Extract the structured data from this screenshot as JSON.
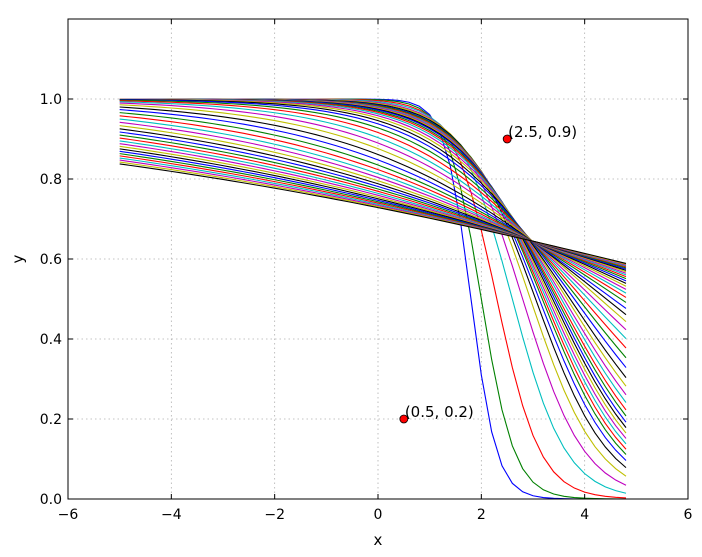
{
  "chart_data": {
    "type": "line",
    "title": "",
    "xlabel": "x",
    "ylabel": "y",
    "xlim": [
      -6,
      6
    ],
    "ylim": [
      0,
      1.2
    ],
    "grid": true,
    "legend": "none",
    "x_ticks": [
      {
        "value": -6,
        "label": "−6"
      },
      {
        "value": -4,
        "label": "−4"
      },
      {
        "value": -2,
        "label": "−2"
      },
      {
        "value": 0,
        "label": "0"
      },
      {
        "value": 2,
        "label": "2"
      },
      {
        "value": 4,
        "label": "4"
      },
      {
        "value": 6,
        "label": "6"
      }
    ],
    "y_ticks": [
      {
        "value": 0.0,
        "label": "0.0"
      },
      {
        "value": 0.2,
        "label": "0.2"
      },
      {
        "value": 0.4,
        "label": "0.4"
      },
      {
        "value": 0.6,
        "label": "0.6"
      },
      {
        "value": 0.8,
        "label": "0.8"
      },
      {
        "value": 1.0,
        "label": "1.0"
      }
    ],
    "series_formula": "y = 1 - 1/(1 + exp(-(x - c)/s)), sampled on x from -5 to 4.8 in steps of 0.2",
    "x_samples": {
      "start": -5,
      "stop": 4.8,
      "step": 0.2
    },
    "series_color_cycle": [
      "#0000ff",
      "#008000",
      "#ff0000",
      "#00bfbf",
      "#bf00bf",
      "#bfbf00",
      "#000000"
    ],
    "series": [
      {
        "c": 1.8,
        "s": 0.25
      },
      {
        "c": 2.0,
        "s": 0.32
      },
      {
        "c": 2.3,
        "s": 0.42
      },
      {
        "c": 2.6,
        "s": 0.52
      },
      {
        "c": 2.8,
        "s": 0.6
      },
      {
        "c": 2.95,
        "s": 0.66
      },
      {
        "c": 3.05,
        "s": 0.71
      },
      {
        "c": 3.12,
        "s": 0.75
      },
      {
        "c": 3.18,
        "s": 0.78
      },
      {
        "c": 3.22,
        "s": 0.81
      },
      {
        "c": 3.26,
        "s": 0.84
      },
      {
        "c": 3.3,
        "s": 0.87
      },
      {
        "c": 3.34,
        "s": 0.9
      },
      {
        "c": 3.38,
        "s": 0.93
      },
      {
        "c": 3.42,
        "s": 0.96
      },
      {
        "c": 3.46,
        "s": 1.0
      },
      {
        "c": 3.5,
        "s": 1.04
      },
      {
        "c": 3.55,
        "s": 1.09
      },
      {
        "c": 3.6,
        "s": 1.15
      },
      {
        "c": 3.66,
        "s": 1.22
      },
      {
        "c": 3.72,
        "s": 1.3
      },
      {
        "c": 3.8,
        "s": 1.4
      },
      {
        "c": 3.88,
        "s": 1.52
      },
      {
        "c": 3.97,
        "s": 1.66
      },
      {
        "c": 4.07,
        "s": 1.82
      },
      {
        "c": 4.18,
        "s": 2.0
      },
      {
        "c": 4.3,
        "s": 2.2
      },
      {
        "c": 4.42,
        "s": 2.42
      },
      {
        "c": 4.55,
        "s": 2.65
      },
      {
        "c": 4.7,
        "s": 2.9
      },
      {
        "c": 4.85,
        "s": 3.15
      },
      {
        "c": 5.0,
        "s": 3.4
      },
      {
        "c": 5.15,
        "s": 3.65
      },
      {
        "c": 5.3,
        "s": 3.9
      },
      {
        "c": 5.45,
        "s": 4.15
      },
      {
        "c": 5.6,
        "s": 4.4
      },
      {
        "c": 5.75,
        "s": 4.65
      },
      {
        "c": 5.9,
        "s": 4.9
      },
      {
        "c": 6.05,
        "s": 5.15
      },
      {
        "c": 6.2,
        "s": 5.4
      },
      {
        "c": 6.35,
        "s": 5.65
      },
      {
        "c": 6.5,
        "s": 5.9
      },
      {
        "c": 6.65,
        "s": 6.15
      },
      {
        "c": 6.8,
        "s": 6.4
      },
      {
        "c": 6.95,
        "s": 6.65
      },
      {
        "c": 7.1,
        "s": 6.9
      },
      {
        "c": 7.25,
        "s": 7.15
      },
      {
        "c": 7.4,
        "s": 7.4
      },
      {
        "c": 7.55,
        "s": 7.65
      }
    ],
    "annotations": [
      {
        "x": 2.5,
        "y": 0.9,
        "text": "(2.5, 0.9)",
        "marker_color": "#ff0000"
      },
      {
        "x": 0.5,
        "y": 0.2,
        "text": "(0.5, 0.2)",
        "marker_color": "#ff0000"
      }
    ]
  }
}
